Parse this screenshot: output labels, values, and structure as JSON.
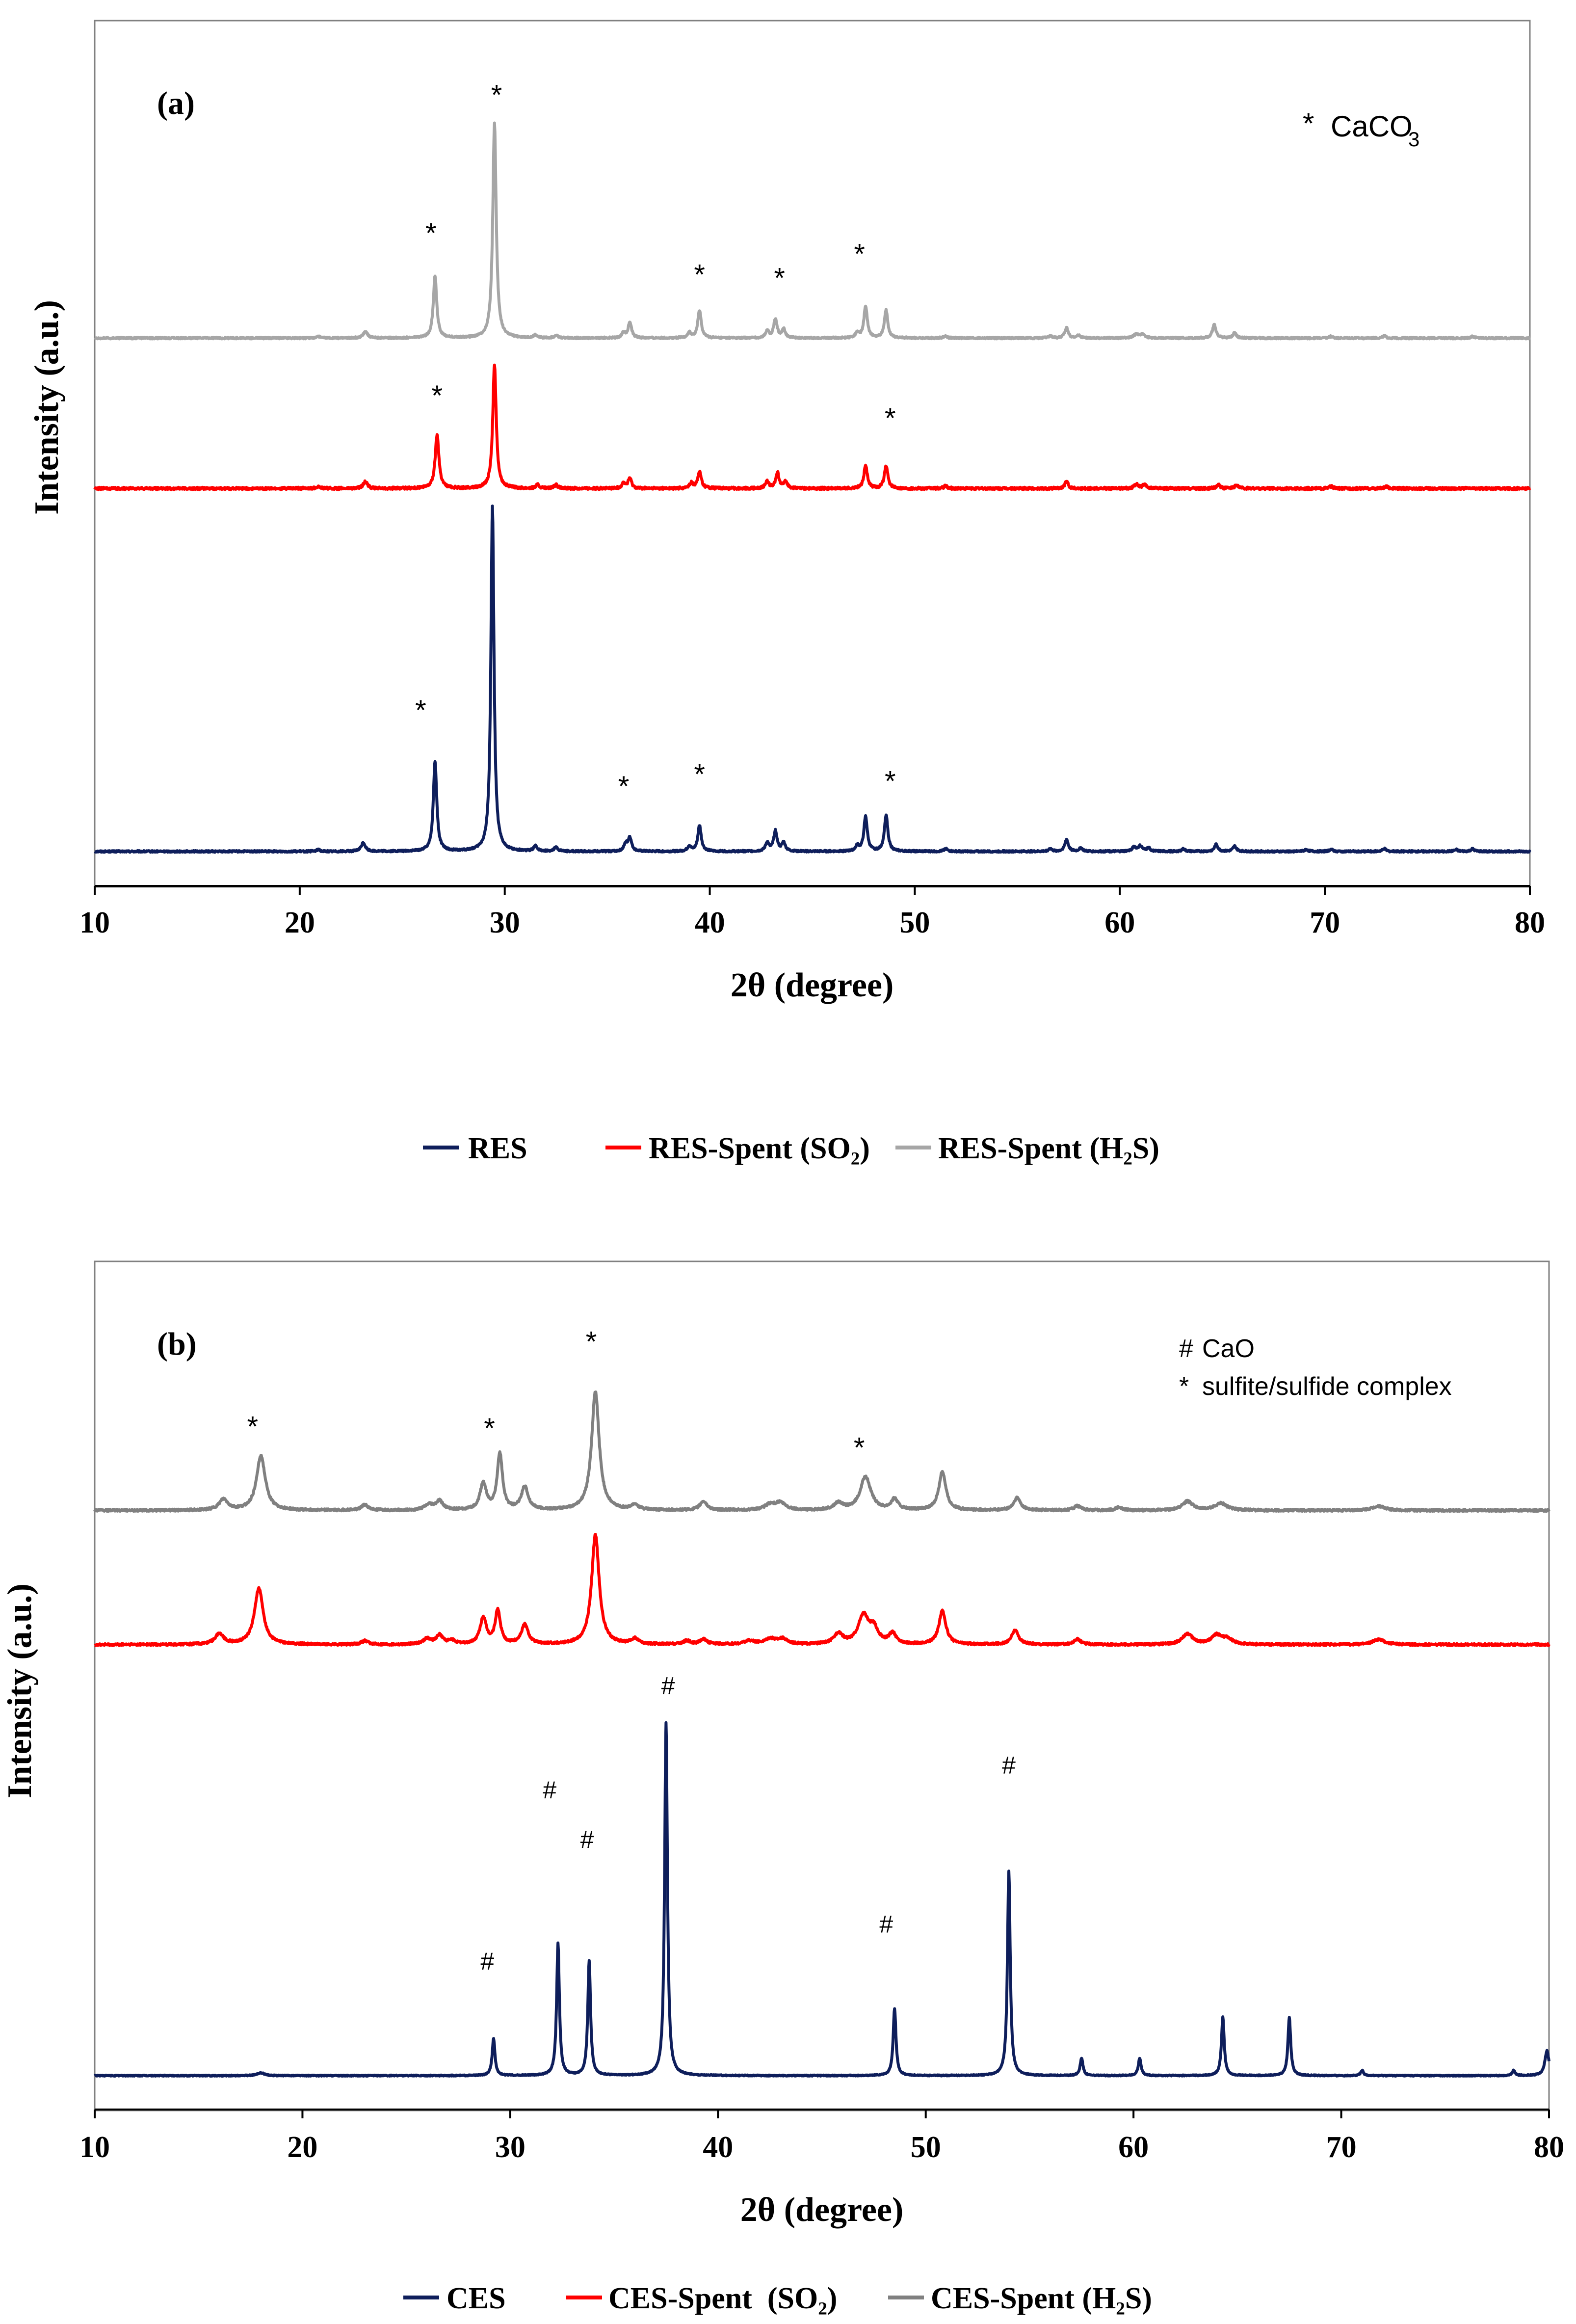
{
  "colors": {
    "res": "#0e1e5b",
    "res_so2": "#ff0000",
    "res_h2s": "#a6a6a6",
    "ces": "#0e1e5b",
    "ces_so2": "#ff0000",
    "ces_h2s": "#808080",
    "frame": "#808080",
    "axis": "#000000"
  },
  "chart_data": [
    {
      "type": "line",
      "panel_label": "(a)",
      "xlabel": "2θ (degree)",
      "ylabel": "Intensity (a.u.)",
      "xlim": [
        10,
        80
      ],
      "xticks": [
        10,
        20,
        30,
        40,
        50,
        60,
        70,
        80
      ],
      "yticks_shown": false,
      "legend_location": "bottom-center",
      "annotation_lines": [
        {
          "symbol": "*",
          "text": "CaCO",
          "subscript": "3"
        }
      ],
      "series": [
        {
          "name": "RES",
          "legend_label": "RES",
          "color_key": "res",
          "baseline": 0,
          "noise": 0.25,
          "peaks": [
            [
              20.9,
              0.5,
              0.1
            ],
            [
              23.1,
              2.5,
              0.12
            ],
            [
              26.6,
              26,
              0.1
            ],
            [
              29.4,
              100,
              0.09
            ],
            [
              31.5,
              1.5,
              0.1
            ],
            [
              32.5,
              1.2,
              0.1
            ],
            [
              35.9,
              2,
              0.1
            ],
            [
              36.1,
              4,
              0.1
            ],
            [
              39.0,
              1.5,
              0.1
            ],
            [
              39.5,
              7.5,
              0.1
            ],
            [
              42.8,
              2.5,
              0.1
            ],
            [
              43.2,
              6,
              0.1
            ],
            [
              43.6,
              2.5,
              0.1
            ],
            [
              47.2,
              1.5,
              0.1
            ],
            [
              47.6,
              10,
              0.1
            ],
            [
              48.6,
              10.5,
              0.1
            ],
            [
              51.5,
              0.8,
              0.1
            ],
            [
              56.6,
              0.8,
              0.1
            ],
            [
              57.4,
              3.5,
              0.1
            ],
            [
              58.1,
              1,
              0.1
            ],
            [
              60.7,
              1.2,
              0.12
            ],
            [
              61.0,
              1.5,
              0.12
            ],
            [
              61.4,
              1,
              0.1
            ],
            [
              63.1,
              0.7,
              0.1
            ],
            [
              64.7,
              2,
              0.1
            ],
            [
              65.6,
              1.5,
              0.1
            ],
            [
              69.1,
              0.6,
              0.1
            ],
            [
              70.3,
              0.6,
              0.1
            ],
            [
              72.9,
              0.8,
              0.1
            ],
            [
              76.4,
              0.5,
              0.1
            ],
            [
              77.2,
              0.7,
              0.1
            ]
          ],
          "labels": [
            {
              "text": "*",
              "x": 25.9,
              "y": 38
            },
            {
              "text": "*",
              "x": 35.8,
              "y": 16
            },
            {
              "text": "*",
              "x": 39.5,
              "y": 19.5
            },
            {
              "text": "*",
              "x": 48.8,
              "y": 17.5
            }
          ]
        },
        {
          "name": "RES-Spent (SO2)",
          "legend_label": "RES-Spent (SO₂)",
          "color_key": "res_so2",
          "baseline": 105,
          "noise": 0.35,
          "peaks": [
            [
              20.9,
              0.5,
              0.12
            ],
            [
              23.2,
              2,
              0.12
            ],
            [
              26.7,
              15.5,
              0.11
            ],
            [
              29.5,
              36,
              0.1
            ],
            [
              31.6,
              1,
              0.1
            ],
            [
              32.5,
              1,
              0.1
            ],
            [
              35.8,
              1.5,
              0.1
            ],
            [
              36.1,
              3,
              0.1
            ],
            [
              39.1,
              1.5,
              0.1
            ],
            [
              39.5,
              5,
              0.1
            ],
            [
              42.8,
              2,
              0.1
            ],
            [
              43.3,
              4.5,
              0.1
            ],
            [
              43.7,
              2,
              0.1
            ],
            [
              47.6,
              6.5,
              0.1
            ],
            [
              48.6,
              6.5,
              0.1
            ],
            [
              51.5,
              0.7,
              0.1
            ],
            [
              57.4,
              2,
              0.1
            ],
            [
              60.8,
              1.2,
              0.12
            ],
            [
              61.2,
              1,
              0.12
            ],
            [
              64.8,
              1.2,
              0.1
            ],
            [
              65.7,
              1,
              0.1
            ],
            [
              70.3,
              0.6,
              0.1
            ],
            [
              73.0,
              0.5,
              0.1
            ]
          ],
          "labels": [
            {
              "text": "*",
              "x": 26.7,
              "y": 129
            },
            {
              "text": "*",
              "x": 48.8,
              "y": 122.5
            }
          ]
        },
        {
          "name": "RES-Spent (H2S)",
          "legend_label": "RES-Spent (H₂S)",
          "color_key": "res_h2s",
          "baseline": 148.5,
          "noise": 0.25,
          "peaks": [
            [
              20.9,
              0.5,
              0.1
            ],
            [
              23.2,
              2,
              0.12
            ],
            [
              26.6,
              18,
              0.1
            ],
            [
              29.5,
              62,
              0.1
            ],
            [
              31.5,
              0.8,
              0.1
            ],
            [
              32.5,
              0.8,
              0.1
            ],
            [
              35.8,
              1.5,
              0.1
            ],
            [
              36.1,
              4.5,
              0.1
            ],
            [
              39.0,
              1.5,
              0.1
            ],
            [
              39.5,
              8,
              0.1
            ],
            [
              42.8,
              2,
              0.1
            ],
            [
              43.2,
              5.5,
              0.1
            ],
            [
              43.6,
              2.5,
              0.1
            ],
            [
              47.2,
              1.5,
              0.1
            ],
            [
              47.6,
              9,
              0.1
            ],
            [
              48.6,
              8,
              0.1
            ],
            [
              51.5,
              0.6,
              0.1
            ],
            [
              56.6,
              0.6,
              0.1
            ],
            [
              57.4,
              3,
              0.1
            ],
            [
              58.0,
              0.8,
              0.1
            ],
            [
              60.8,
              1.2,
              0.12
            ],
            [
              61.1,
              1.2,
              0.12
            ],
            [
              64.6,
              4,
              0.1
            ],
            [
              65.6,
              1.5,
              0.1
            ],
            [
              70.3,
              0.5,
              0.1
            ],
            [
              72.9,
              0.6,
              0.1
            ],
            [
              77.2,
              0.5,
              0.1
            ]
          ],
          "labels": [
            {
              "text": "*",
              "x": 26.4,
              "y": 176
            },
            {
              "text": "*",
              "x": 29.6,
              "y": 216
            },
            {
              "text": "*",
              "x": 39.5,
              "y": 164
            },
            {
              "text": "*",
              "x": 43.4,
              "y": 163
            },
            {
              "text": "*",
              "x": 47.3,
              "y": 170
            }
          ]
        }
      ],
      "y_range": [
        -5,
        225
      ]
    },
    {
      "type": "line",
      "panel_label": "(b)",
      "xlabel": "2θ (degree)",
      "ylabel": "Intensity (a.u.)",
      "xlim": [
        10,
        80
      ],
      "xticks": [
        10,
        20,
        30,
        40,
        50,
        60,
        70,
        80
      ],
      "yticks_shown": false,
      "legend_location": "bottom-center",
      "annotation_lines": [
        {
          "symbol": "#",
          "text": "CaO"
        },
        {
          "symbol": "*",
          "text": "sulfite/sulfide complex"
        }
      ],
      "series": [
        {
          "name": "CES",
          "legend_label": "CES",
          "color_key": "ces",
          "baseline": 0,
          "noise": 0.15,
          "peaks": [
            [
              18.0,
              0.8,
              0.2
            ],
            [
              29.2,
              10.5,
              0.08
            ],
            [
              32.3,
              37.5,
              0.08
            ],
            [
              33.8,
              32.5,
              0.08
            ],
            [
              37.5,
              100,
              0.08
            ],
            [
              48.5,
              19,
              0.08
            ],
            [
              54.0,
              58,
              0.08
            ],
            [
              57.5,
              5,
              0.08
            ],
            [
              60.3,
              5,
              0.08
            ],
            [
              64.3,
              16.5,
              0.08
            ],
            [
              67.5,
              16.5,
              0.08
            ],
            [
              71.0,
              1.5,
              0.08
            ],
            [
              78.3,
              1.5,
              0.08
            ],
            [
              79.9,
              7,
              0.12
            ]
          ],
          "labels": [
            {
              "text": "#",
              "x": 28.9,
              "y": 30
            },
            {
              "text": "#",
              "x": 31.9,
              "y": 78.5
            },
            {
              "text": "#",
              "x": 33.7,
              "y": 64.5
            },
            {
              "text": "#",
              "x": 37.6,
              "y": 108
            },
            {
              "text": "#",
              "x": 48.1,
              "y": 40.5
            },
            {
              "text": "#",
              "x": 54.0,
              "y": 85.5
            }
          ]
        },
        {
          "name": "CES-Spent (SO2)",
          "legend_label": "CES-Spent  (SO₂)",
          "color_key": "ces_so2",
          "baseline": 122,
          "noise": 0.3,
          "peaks": [
            [
              16.0,
              3,
              0.25
            ],
            [
              17.9,
              16,
              0.25
            ],
            [
              23.0,
              1,
              0.2
            ],
            [
              26.0,
              1.5,
              0.25
            ],
            [
              26.6,
              2.5,
              0.2
            ],
            [
              27.2,
              1,
              0.2
            ],
            [
              28.7,
              7.5,
              0.18
            ],
            [
              29.4,
              9.5,
              0.15
            ],
            [
              30.7,
              5.5,
              0.2
            ],
            [
              34.1,
              31,
              0.22
            ],
            [
              36.0,
              1.5,
              0.2
            ],
            [
              38.5,
              1,
              0.2
            ],
            [
              39.3,
              1.5,
              0.2
            ],
            [
              41.5,
              1,
              0.3
            ],
            [
              42.5,
              1.5,
              0.3
            ],
            [
              43.1,
              1.5,
              0.3
            ],
            [
              45.8,
              3,
              0.25
            ],
            [
              47.0,
              8,
              0.3
            ],
            [
              47.5,
              4,
              0.25
            ],
            [
              48.4,
              3,
              0.2
            ],
            [
              50.8,
              9.5,
              0.2
            ],
            [
              54.3,
              4,
              0.2
            ],
            [
              57.3,
              1.5,
              0.2
            ],
            [
              62.6,
              3,
              0.3
            ],
            [
              64.0,
              2.5,
              0.3
            ],
            [
              64.5,
              1.5,
              0.3
            ],
            [
              71.8,
              1.5,
              0.35
            ]
          ],
          "labels": []
        },
        {
          "name": "CES-Spent (H2S)",
          "legend_label": "CES-Spent (H₂S)",
          "color_key": "ces_h2s",
          "baseline": 160,
          "noise": 0.3,
          "peaks": [
            [
              16.2,
              3,
              0.25
            ],
            [
              18.0,
              15.5,
              0.25
            ],
            [
              23.0,
              1.5,
              0.2
            ],
            [
              26.1,
              1.5,
              0.25
            ],
            [
              26.6,
              2.5,
              0.2
            ],
            [
              28.7,
              7.5,
              0.18
            ],
            [
              29.5,
              16,
              0.15
            ],
            [
              30.7,
              6.5,
              0.2
            ],
            [
              34.1,
              33.5,
              0.22
            ],
            [
              36.0,
              1.5,
              0.2
            ],
            [
              39.3,
              2.5,
              0.2
            ],
            [
              42.5,
              1.5,
              0.3
            ],
            [
              43.0,
              2,
              0.3
            ],
            [
              45.8,
              2,
              0.25
            ],
            [
              47.1,
              9.5,
              0.3
            ],
            [
              48.5,
              3,
              0.2
            ],
            [
              50.8,
              11,
              0.2
            ],
            [
              54.4,
              3.5,
              0.2
            ],
            [
              57.3,
              1.2,
              0.2
            ],
            [
              59.3,
              0.8,
              0.2
            ],
            [
              62.6,
              2.5,
              0.3
            ],
            [
              64.2,
              2,
              0.35
            ],
            [
              71.8,
              1.2,
              0.35
            ]
          ],
          "labels": [
            {
              "text": "*",
              "x": 17.6,
              "y": 181
            },
            {
              "text": "*",
              "x": 29.0,
              "y": 180.5
            },
            {
              "text": "*",
              "x": 33.9,
              "y": 205
            },
            {
              "text": "*",
              "x": 46.8,
              "y": 175
            }
          ]
        }
      ],
      "y_range": [
        -5,
        218
      ]
    }
  ]
}
